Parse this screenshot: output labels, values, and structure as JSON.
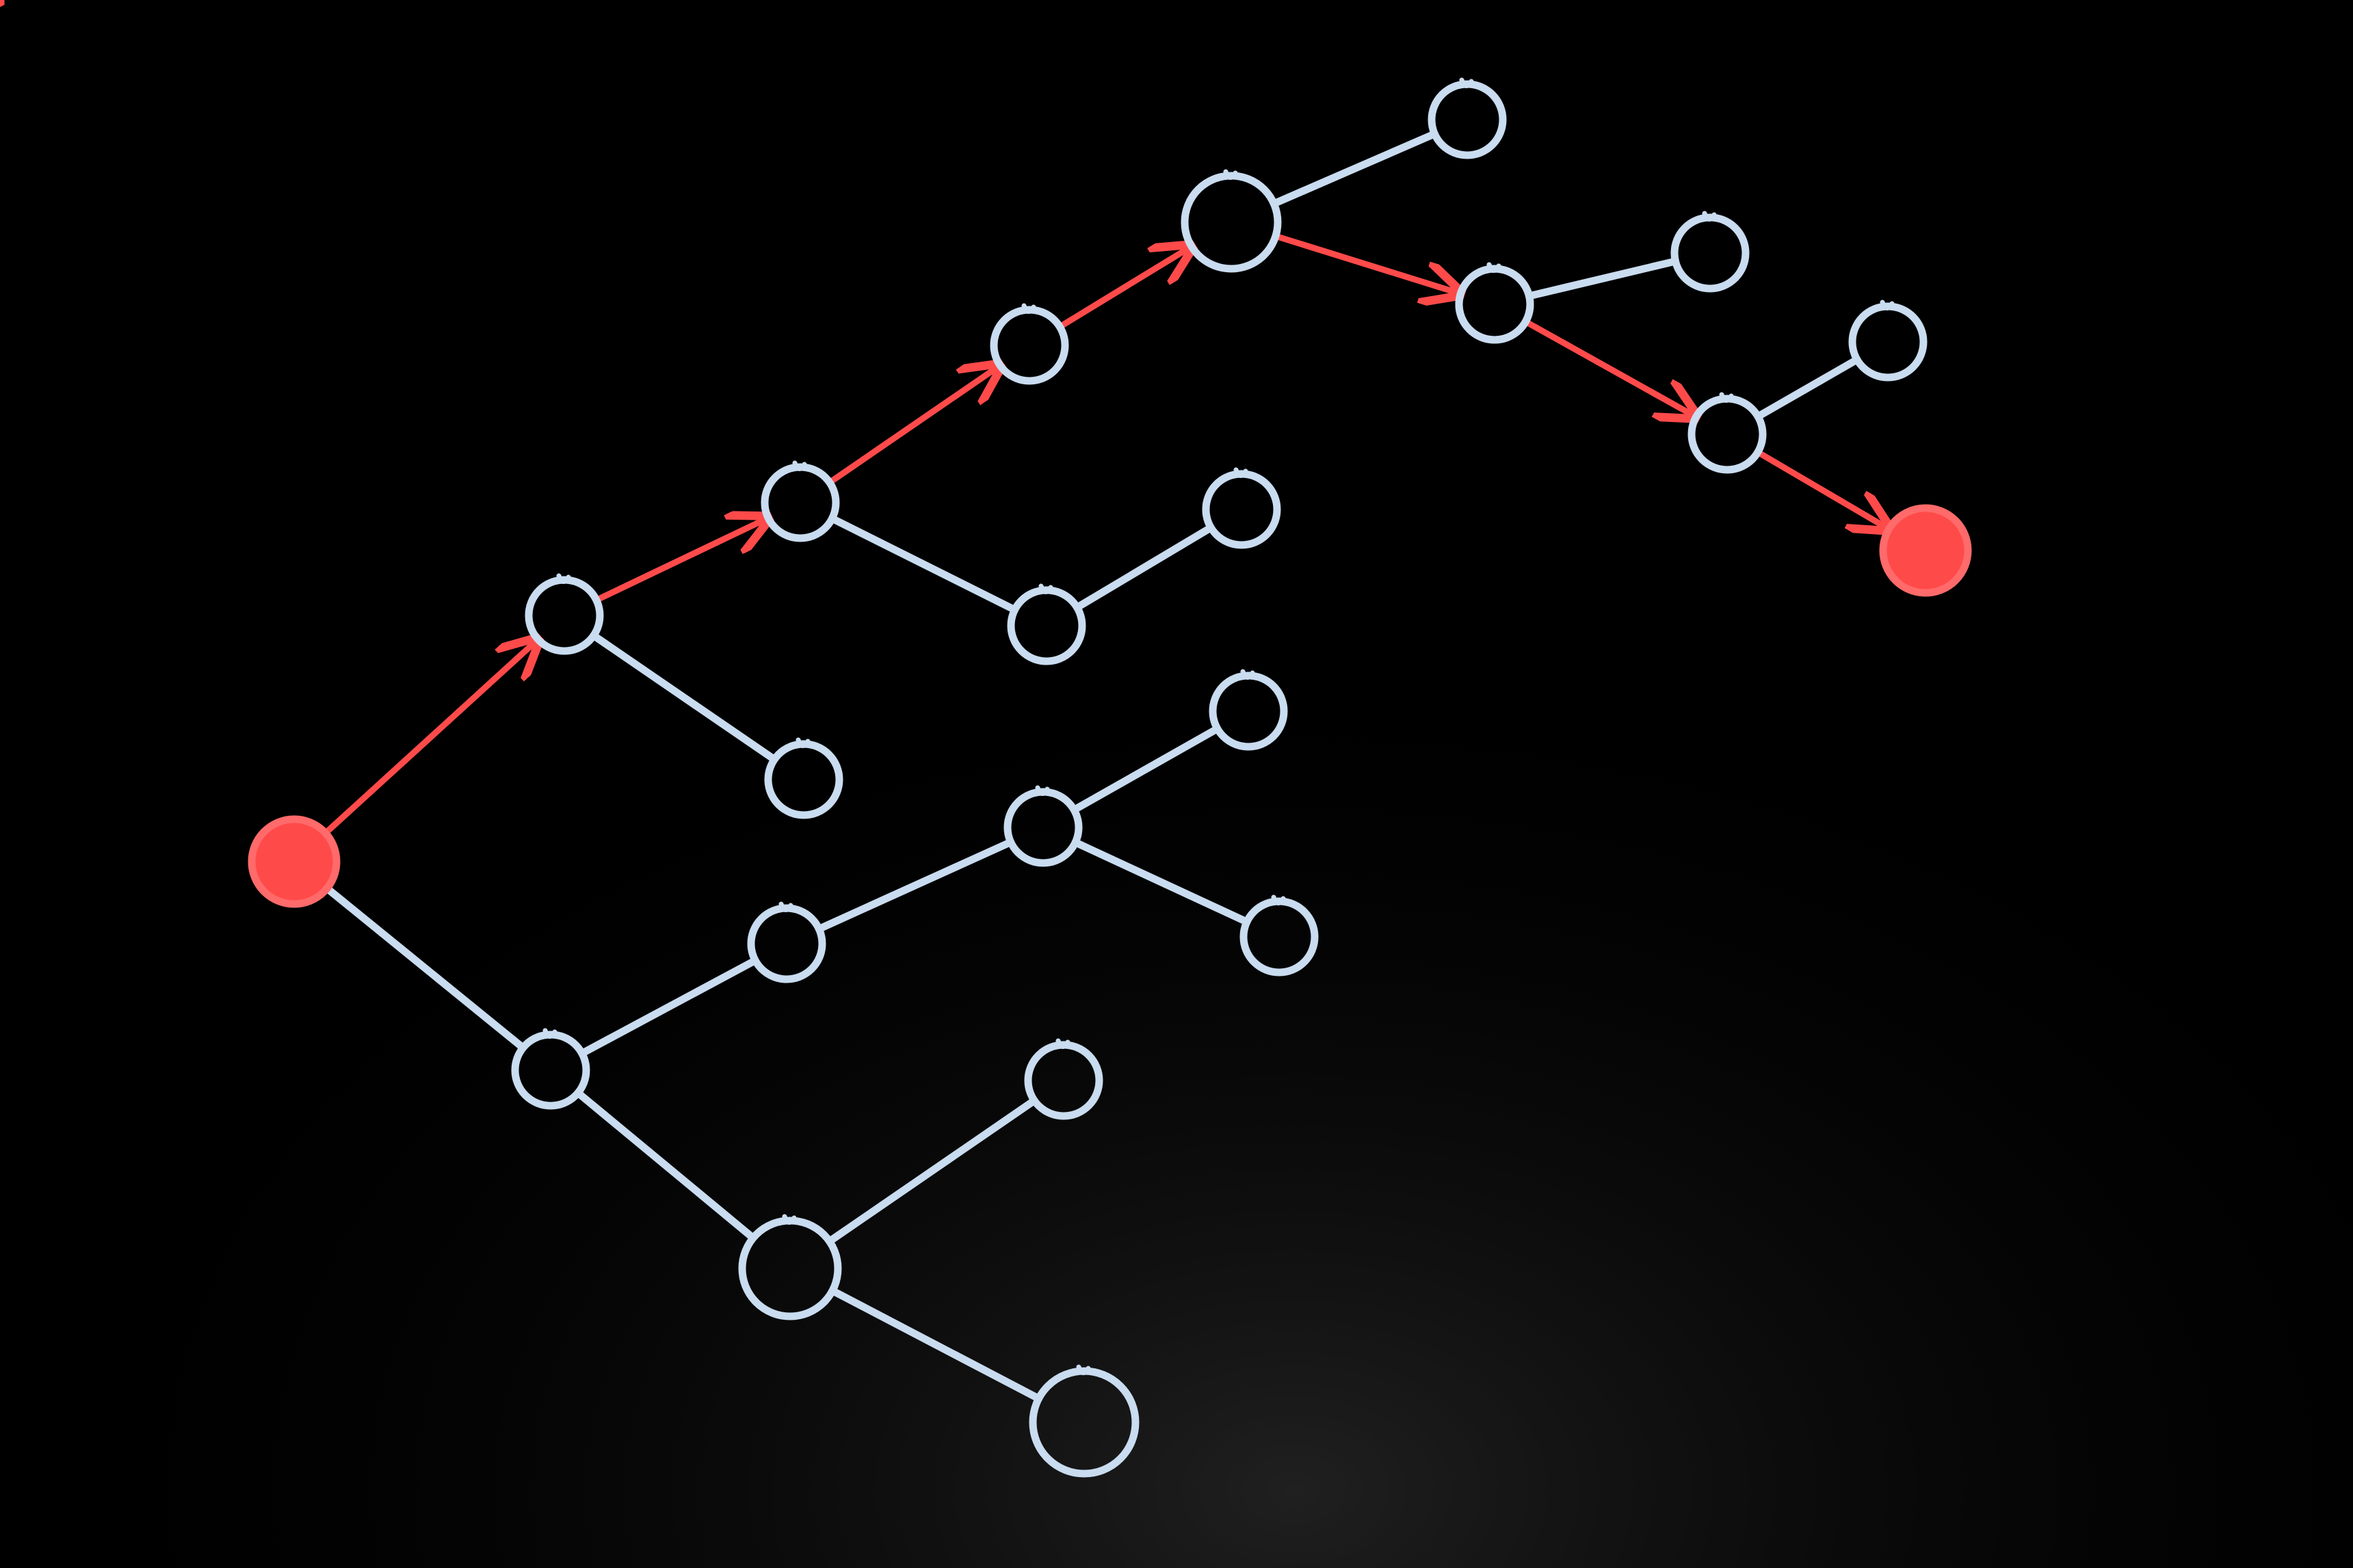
{
  "scene": {
    "description_free": true,
    "background": "#000000",
    "surface_glare": "#3a3a3a",
    "chalk_color": "#c9dcf0",
    "highlight_color": "#ff4a4a"
  },
  "graph": {
    "nodes": [
      {
        "id": "n0",
        "role": "start",
        "highlighted": true
      },
      {
        "id": "n1"
      },
      {
        "id": "n2"
      },
      {
        "id": "n3"
      },
      {
        "id": "n4"
      },
      {
        "id": "n5"
      },
      {
        "id": "n6"
      },
      {
        "id": "n7"
      },
      {
        "id": "n8"
      },
      {
        "id": "n9"
      },
      {
        "id": "n10"
      },
      {
        "id": "n11"
      },
      {
        "id": "n12"
      },
      {
        "id": "n13"
      },
      {
        "id": "n14"
      },
      {
        "id": "n15"
      },
      {
        "id": "n16"
      },
      {
        "id": "n17"
      },
      {
        "id": "n18"
      },
      {
        "id": "n19"
      },
      {
        "id": "n20",
        "role": "goal",
        "highlighted": true
      },
      {
        "id": "n21"
      },
      {
        "id": "n22"
      },
      {
        "id": "n23"
      }
    ],
    "edges": [
      [
        "n0",
        "n1"
      ],
      [
        "n1",
        "n2"
      ],
      [
        "n2",
        "n3"
      ],
      [
        "n3",
        "n4"
      ],
      [
        "n4",
        "n5"
      ],
      [
        "n5",
        "n17"
      ],
      [
        "n17",
        "n19"
      ],
      [
        "n19",
        "n20"
      ],
      [
        "n1",
        "n6"
      ],
      [
        "n2",
        "n7"
      ],
      [
        "n7",
        "n8"
      ],
      [
        "n0",
        "n9"
      ],
      [
        "n9",
        "n10"
      ],
      [
        "n10",
        "n11"
      ],
      [
        "n11",
        "n12"
      ],
      [
        "n11",
        "n13"
      ],
      [
        "n9",
        "n14"
      ],
      [
        "n14",
        "n15"
      ],
      [
        "n14",
        "n16"
      ],
      [
        "n4",
        "n21"
      ],
      [
        "n17",
        "n22"
      ],
      [
        "n19",
        "n23"
      ]
    ],
    "highlighted_path": [
      "n0",
      "n1",
      "n2",
      "n3",
      "n4",
      "n5",
      "n17",
      "n19",
      "n20"
    ]
  }
}
